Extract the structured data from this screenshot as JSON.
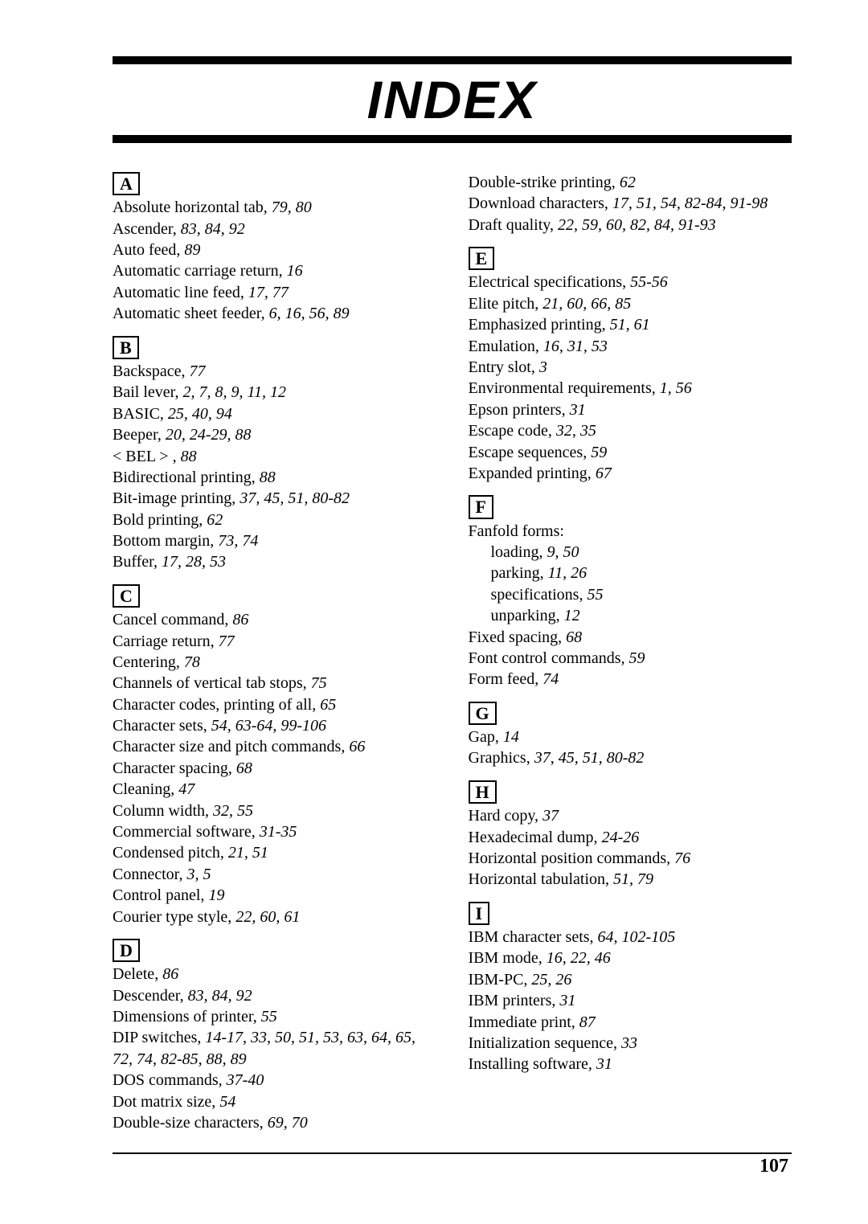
{
  "title": "INDEX",
  "titleFontSizePx": 66,
  "pageNumber": "107",
  "sections": [
    {
      "letter": "A",
      "column": 0,
      "entries": [
        {
          "t": "Absolute horizontal tab, ",
          "p": "79, 80"
        },
        {
          "t": "Ascender, ",
          "p": "83, 84, 92"
        },
        {
          "t": "Auto feed, ",
          "p": "89"
        },
        {
          "t": "Automatic carriage return, ",
          "p": "16"
        },
        {
          "t": "Automatic line feed, ",
          "p": "17, 77"
        },
        {
          "t": "Automatic sheet feeder, ",
          "p": "6, 16, 56, 89"
        }
      ]
    },
    {
      "letter": "B",
      "column": 0,
      "entries": [
        {
          "t": "Backspace, ",
          "p": "77"
        },
        {
          "t": "Bail lever, ",
          "p": "2, 7, 8, 9, 11, 12"
        },
        {
          "t": "BASIC, ",
          "p": "25, 40, 94"
        },
        {
          "t": "Beeper, ",
          "p": "20, 24-29, 88"
        },
        {
          "t": "< BEL > , ",
          "p": "88"
        },
        {
          "t": "Bidirectional printing, ",
          "p": "88"
        },
        {
          "t": "Bit-image printing, ",
          "p": "37, 45, 51, 80-82"
        },
        {
          "t": "Bold printing, ",
          "p": "62"
        },
        {
          "t": "Bottom margin, ",
          "p": "73, 74"
        },
        {
          "t": "Buffer, ",
          "p": "17, 28, 53"
        }
      ]
    },
    {
      "letter": "C",
      "column": 0,
      "entries": [
        {
          "t": "Cancel command, ",
          "p": "86"
        },
        {
          "t": "Carriage return, ",
          "p": "77"
        },
        {
          "t": "Centering, ",
          "p": "78"
        },
        {
          "t": "Channels of vertical tab stops, ",
          "p": "75"
        },
        {
          "t": "Character codes, printing of all, ",
          "p": "65"
        },
        {
          "t": "Character sets, ",
          "p": "54, 63-64, 99-106"
        },
        {
          "t": "Character size and pitch commands, ",
          "p": "66"
        },
        {
          "t": "Character spacing, ",
          "p": "68"
        },
        {
          "t": "Cleaning, ",
          "p": "47"
        },
        {
          "t": "Column width, ",
          "p": "32, 55"
        },
        {
          "t": "Commercial software, ",
          "p": "31-35"
        },
        {
          "t": "Condensed pitch, ",
          "p": "21, 51"
        },
        {
          "t": "Connector, ",
          "p": "3, 5"
        },
        {
          "t": "Control panel, ",
          "p": "19"
        },
        {
          "t": "Courier type style, ",
          "p": "22, 60, 61"
        }
      ]
    },
    {
      "letter": "D",
      "column": 0,
      "entries": [
        {
          "t": "Delete, ",
          "p": "86"
        },
        {
          "t": "Descender, ",
          "p": "83, 84, 92"
        },
        {
          "t": "Dimensions of printer, ",
          "p": "55"
        },
        {
          "t": "DIP switches, ",
          "p": "14-17, 33, 50, 51, 53, 63, 64, 65, 72, 74, 82-85, 88, 89"
        },
        {
          "t": "DOS commands, ",
          "p": "37-40"
        },
        {
          "t": "Dot matrix size, ",
          "p": "54"
        },
        {
          "t": "Double-size characters, ",
          "p": "69, 70"
        }
      ]
    },
    {
      "letter": "",
      "column": 1,
      "continuation": true,
      "entries": [
        {
          "t": "Double-strike printing, ",
          "p": "62"
        },
        {
          "t": "Download characters, ",
          "p": "17, 51, 54, 82-84, 91-98"
        },
        {
          "t": "Draft quality, ",
          "p": "22, 59, 60, 82, 84, 91-93"
        }
      ]
    },
    {
      "letter": "E",
      "column": 1,
      "entries": [
        {
          "t": "Electrical specifications, ",
          "p": "55-56"
        },
        {
          "t": "Elite pitch, ",
          "p": "21, 60, 66, 85"
        },
        {
          "t": "Emphasized printing, ",
          "p": "51, 61"
        },
        {
          "t": "Emulation, ",
          "p": "16, 31, 53"
        },
        {
          "t": "Entry slot, ",
          "p": "3"
        },
        {
          "t": "Environmental requirements, ",
          "p": "1, 56"
        },
        {
          "t": "Epson printers, ",
          "p": "31"
        },
        {
          "t": "Escape code, ",
          "p": "32, 35"
        },
        {
          "t": "Escape sequences, ",
          "p": "59"
        },
        {
          "t": "Expanded printing, ",
          "p": "67"
        }
      ]
    },
    {
      "letter": "F",
      "column": 1,
      "entries": [
        {
          "t": "Fanfold forms:",
          "p": ""
        },
        {
          "t": "loading, ",
          "p": "9, 50",
          "sub": true
        },
        {
          "t": "parking, ",
          "p": "11, 26",
          "sub": true
        },
        {
          "t": "specifications, ",
          "p": "55",
          "sub": true
        },
        {
          "t": "unparking, ",
          "p": "12",
          "sub": true
        },
        {
          "t": "Fixed spacing, ",
          "p": "68"
        },
        {
          "t": "Font control commands, ",
          "p": "59"
        },
        {
          "t": "Form feed, ",
          "p": "74"
        }
      ]
    },
    {
      "letter": "G",
      "column": 1,
      "entries": [
        {
          "t": "Gap, ",
          "p": "14"
        },
        {
          "t": "Graphics, ",
          "p": "37, 45, 51, 80-82"
        }
      ]
    },
    {
      "letter": "H",
      "column": 1,
      "entries": [
        {
          "t": "Hard copy, ",
          "p": "37"
        },
        {
          "t": "Hexadecimal dump, ",
          "p": "24-26"
        },
        {
          "t": "Horizontal position commands, ",
          "p": "76"
        },
        {
          "t": "Horizontal tabulation, ",
          "p": "51, 79"
        }
      ]
    },
    {
      "letter": "I",
      "column": 1,
      "entries": [
        {
          "t": "IBM character sets, ",
          "p": "64, 102-105"
        },
        {
          "t": "IBM mode, ",
          "p": "16, 22, 46"
        },
        {
          "t": "IBM-PC, ",
          "p": "25, 26"
        },
        {
          "t": "IBM printers, ",
          "p": "31"
        },
        {
          "t": "Immediate print, ",
          "p": "87"
        },
        {
          "t": "Initialization sequence, ",
          "p": "33"
        },
        {
          "t": "Installing software, ",
          "p": "31"
        }
      ]
    }
  ]
}
